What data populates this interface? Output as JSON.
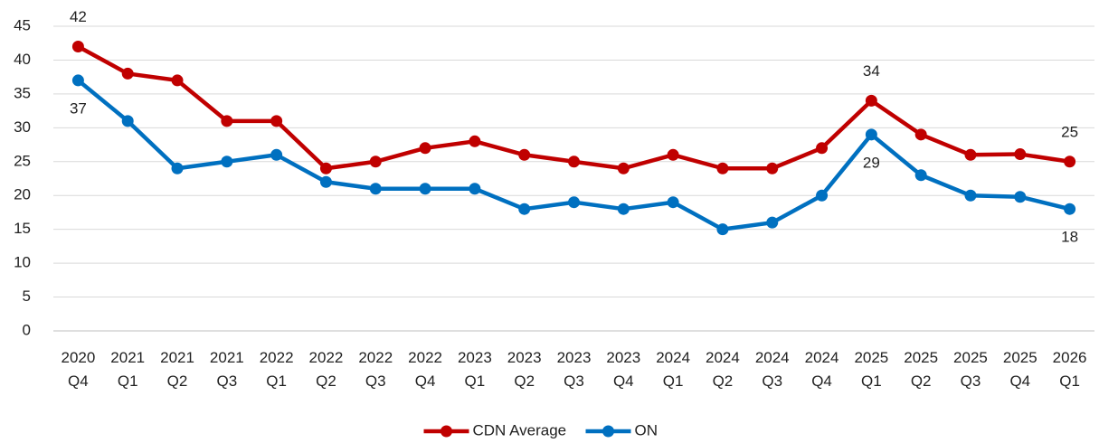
{
  "chart_data": {
    "type": "line",
    "categories": [
      "2020\nQ4",
      "2021\nQ1",
      "2021\nQ2",
      "2021\nQ3",
      "2022\nQ1",
      "2022\nQ2",
      "2022\nQ3",
      "2022\nQ4",
      "2023\nQ1",
      "2023\nQ2",
      "2023\nQ3",
      "2023\nQ4",
      "2024\nQ1",
      "2024\nQ2",
      "2024\nQ3",
      "2024\nQ4",
      "2025\nQ1",
      "2025\nQ2",
      "2025\nQ3",
      "2025\nQ4",
      "2026\nQ1"
    ],
    "series": [
      {
        "name": "CDN Average",
        "color": "#c00000",
        "values": [
          42,
          38,
          37,
          31,
          31,
          24,
          25,
          27,
          28,
          26,
          25,
          24,
          26,
          24,
          24,
          27,
          34,
          29,
          26,
          26.1,
          25
        ],
        "data_label_indices": [
          0,
          16,
          20
        ],
        "data_label_position": "above"
      },
      {
        "name": "ON",
        "color": "#0070c0",
        "values": [
          37,
          31,
          24,
          25,
          26,
          22,
          21,
          21,
          21,
          18,
          19,
          18,
          19,
          15,
          16,
          20,
          29,
          23,
          20,
          19.8,
          18
        ],
        "data_label_indices": [
          0,
          16,
          20
        ],
        "data_label_position": "below"
      }
    ],
    "ylim": [
      0,
      45
    ],
    "yticks": [
      0,
      5,
      10,
      15,
      20,
      25,
      30,
      35,
      40,
      45
    ],
    "grid": true,
    "legend": "bottom"
  }
}
